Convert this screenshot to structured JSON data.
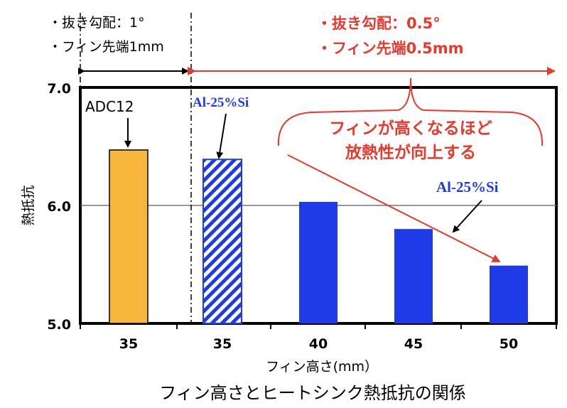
{
  "chart_data": {
    "type": "bar",
    "categories": [
      "35",
      "35",
      "40",
      "45",
      "50"
    ],
    "values": [
      6.47,
      6.39,
      6.03,
      5.8,
      5.49
    ],
    "bar_styles": [
      "orange",
      "blue-hatched",
      "blue",
      "blue",
      "blue"
    ],
    "colors": {
      "orange": "#F6B73C",
      "blue": "#1F3BE8",
      "red": "#E8392D",
      "hatch": "#1F3BE8"
    },
    "ylabel": "熱抵抗",
    "xlabel": "フィン高さ(mm）",
    "title": "フィン高さとヒートシンク熱抵抗の関係",
    "ylim": [
      5.0,
      7.0
    ],
    "yticks": [
      "5.0",
      "6.0",
      "7.0"
    ],
    "grid": true,
    "labels": {
      "adc": "ADC12",
      "al_hatched": "Al-25%Si",
      "al_solid": "Al-25%Si"
    },
    "condition_left": [
      "・抜き勾配：1°",
      "・フィン先端1mm"
    ],
    "condition_right": [
      "・抜き勾配：0.5°",
      "・フィン先端0.5mm"
    ],
    "annotation": [
      "フィンが高くなるほど",
      "放熱性が向上する"
    ]
  }
}
